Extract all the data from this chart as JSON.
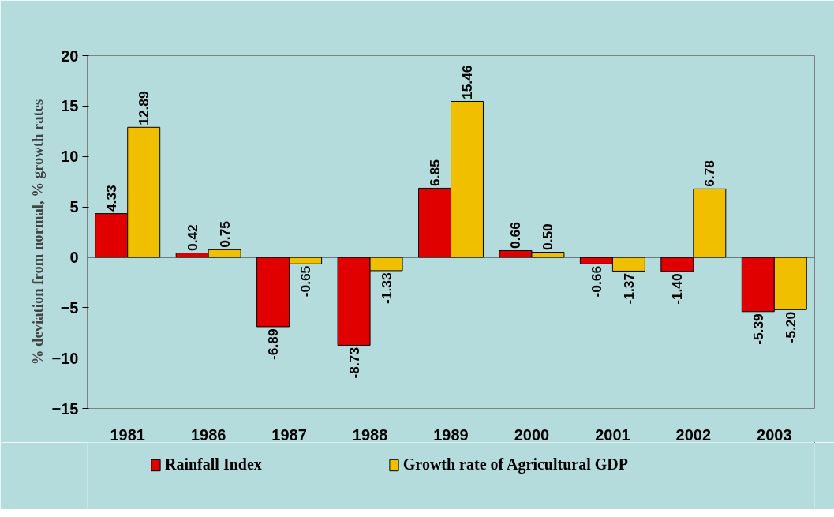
{
  "chart_data": {
    "type": "bar",
    "ylabel": "% deviation from normal, % growth rates",
    "categories": [
      "1981",
      "1986",
      "1987",
      "1988",
      "1989",
      "2000",
      "2001",
      "2002",
      "2003"
    ],
    "series": [
      {
        "name": "Rainfall Index",
        "color": "#e00000",
        "values": [
          4.33,
          0.42,
          -6.89,
          -8.73,
          6.85,
          0.66,
          -0.66,
          -1.4,
          -5.39
        ],
        "value_labels": [
          "4.33",
          "0.42",
          "-6.89",
          "-8.73",
          "6.85",
          "0.66",
          "-0.66",
          "-1.40",
          "-5.39"
        ]
      },
      {
        "name": "Growth rate of Agricultural GDP",
        "color": "#f0c000",
        "values": [
          12.89,
          0.75,
          -0.65,
          -1.33,
          15.46,
          0.5,
          -1.37,
          6.78,
          -5.2
        ],
        "value_labels": [
          "12.89",
          "0.75",
          "-0.65",
          "-1.33",
          "15.46",
          "0.50",
          "-1.37",
          "6.78",
          "-5.20"
        ]
      }
    ],
    "ylim": [
      -15,
      20
    ],
    "yticks": [
      -15,
      -10,
      -5,
      0,
      5,
      10,
      15,
      20
    ],
    "legend": "bottom"
  }
}
